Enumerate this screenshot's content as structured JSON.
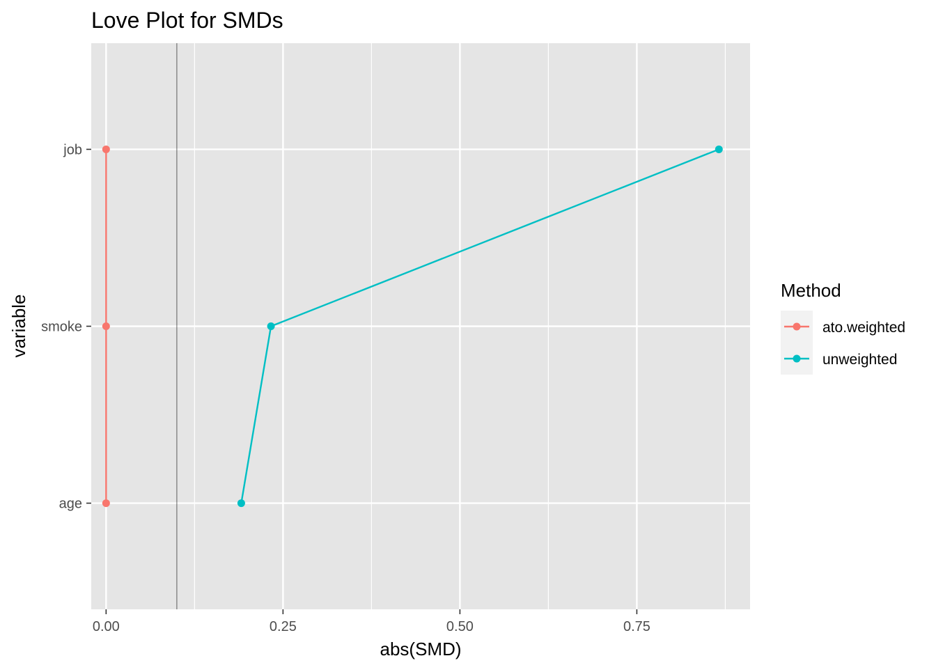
{
  "chart_data": {
    "type": "line",
    "title": "Love Plot for SMDs",
    "xlabel": "abs(SMD)",
    "ylabel": "variable",
    "categories": [
      "age",
      "smoke",
      "job"
    ],
    "xlim": [
      -0.021,
      0.91
    ],
    "xticks": [
      0.0,
      0.25,
      0.5,
      0.75
    ],
    "xtick_labels": [
      "0.00",
      "0.25",
      "0.50",
      "0.75"
    ],
    "reference_line": 0.1,
    "grid": true,
    "legend": {
      "title": "Method",
      "position": "right"
    },
    "series": [
      {
        "name": "ato.weighted",
        "color": "#F8766D",
        "points": [
          {
            "y": "age",
            "x": 0.0
          },
          {
            "y": "smoke",
            "x": 0.0
          },
          {
            "y": "job",
            "x": 0.0
          }
        ]
      },
      {
        "name": "unweighted",
        "color": "#00BFC4",
        "points": [
          {
            "y": "age",
            "x": 0.191
          },
          {
            "y": "smoke",
            "x": 0.233
          },
          {
            "y": "job",
            "x": 0.866
          }
        ]
      }
    ]
  }
}
